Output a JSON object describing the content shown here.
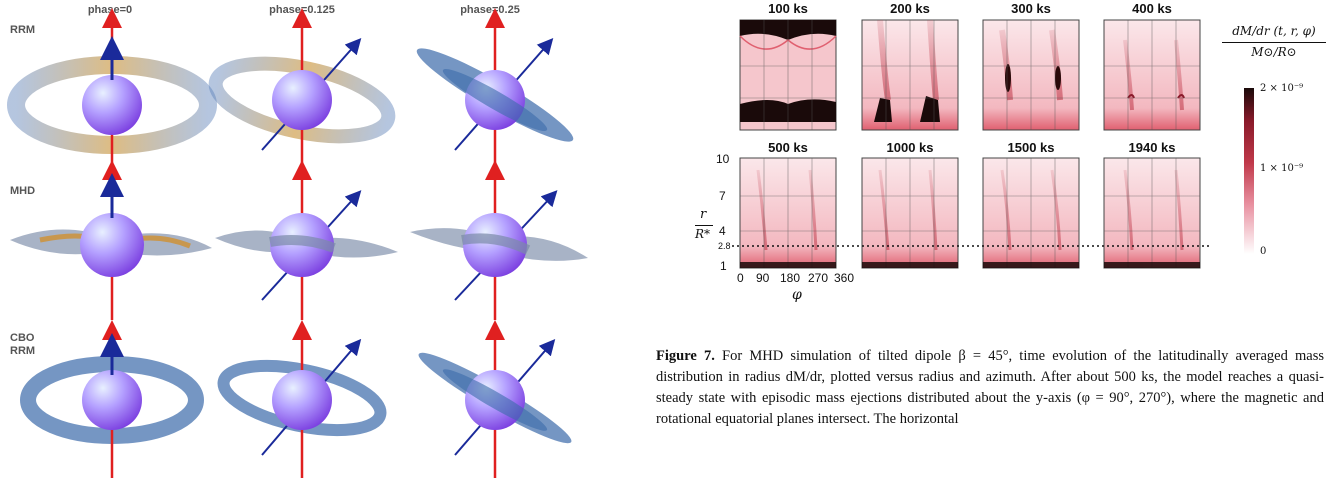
{
  "left_figure": {
    "column_labels": [
      "phase=0",
      "phase=0.125",
      "phase=0.25"
    ],
    "row_labels": [
      [
        "RRM"
      ],
      [
        "MHD"
      ],
      [
        "CBO",
        "RRM"
      ]
    ]
  },
  "right_figure": {
    "panel_titles_top": [
      "100 ks",
      "200 ks",
      "300 ks",
      "400 ks"
    ],
    "panel_titles_bottom": [
      "500 ks",
      "1000 ks",
      "1500 ks",
      "1940 ks"
    ],
    "y_ticks": [
      "10",
      "7",
      "4",
      "2.8",
      "1"
    ],
    "x_ticks": [
      "0",
      "90",
      "180",
      "270",
      "360"
    ],
    "y_axis_label_num": "r",
    "y_axis_label_den": "R*",
    "x_axis_label": "φ",
    "colorbar_title_num": "dM/dr (t, r, φ)",
    "colorbar_title_den": "M⊙/R⊙",
    "colorbar_ticks": [
      "2 × 10⁻⁹",
      "1 × 10⁻⁹",
      "0"
    ],
    "colors": {
      "max": "#1a0a0a",
      "mid": "#c0394a",
      "min": "#ffffff"
    }
  },
  "caption": {
    "label": "Figure 7.",
    "text": "For MHD simulation of tilted dipole β = 45°, time evolution of the latitudinally averaged mass distribution in radius dM/dr, plotted versus radius and azimuth. After about 500 ks, the model reaches a quasi-steady state with episodic mass ejections distributed about the y-axis (φ = 90°, 270°), where the magnetic and rotational equatorial planes intersect. The horizontal"
  }
}
